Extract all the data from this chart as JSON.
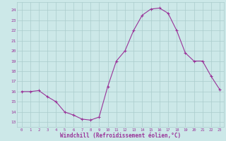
{
  "x": [
    0,
    1,
    2,
    3,
    4,
    5,
    6,
    7,
    8,
    9,
    10,
    11,
    12,
    13,
    14,
    15,
    16,
    17,
    18,
    19,
    20,
    21,
    22,
    23
  ],
  "y": [
    16,
    16,
    16.1,
    15.5,
    15,
    14,
    13.7,
    13.3,
    13.2,
    13.5,
    16.5,
    19,
    20,
    22,
    23.5,
    24.1,
    24.2,
    23.7,
    22,
    19.8,
    19,
    19,
    17.5,
    16.2
  ],
  "line_color": "#993399",
  "marker": "+",
  "marker_size": 3,
  "bg_color": "#cce8e8",
  "grid_color": "#aacccc",
  "xlabel": "Windchill (Refroidissement éolien,°C)",
  "xlabel_color": "#993399",
  "tick_color": "#993399",
  "ylim": [
    12.5,
    24.8
  ],
  "yticks": [
    13,
    14,
    15,
    16,
    17,
    18,
    19,
    20,
    21,
    22,
    23,
    24
  ],
  "xlim": [
    -0.5,
    23.5
  ],
  "xticks": [
    0,
    1,
    2,
    3,
    4,
    5,
    6,
    7,
    8,
    9,
    10,
    11,
    12,
    13,
    14,
    15,
    16,
    17,
    18,
    19,
    20,
    21,
    22,
    23
  ]
}
